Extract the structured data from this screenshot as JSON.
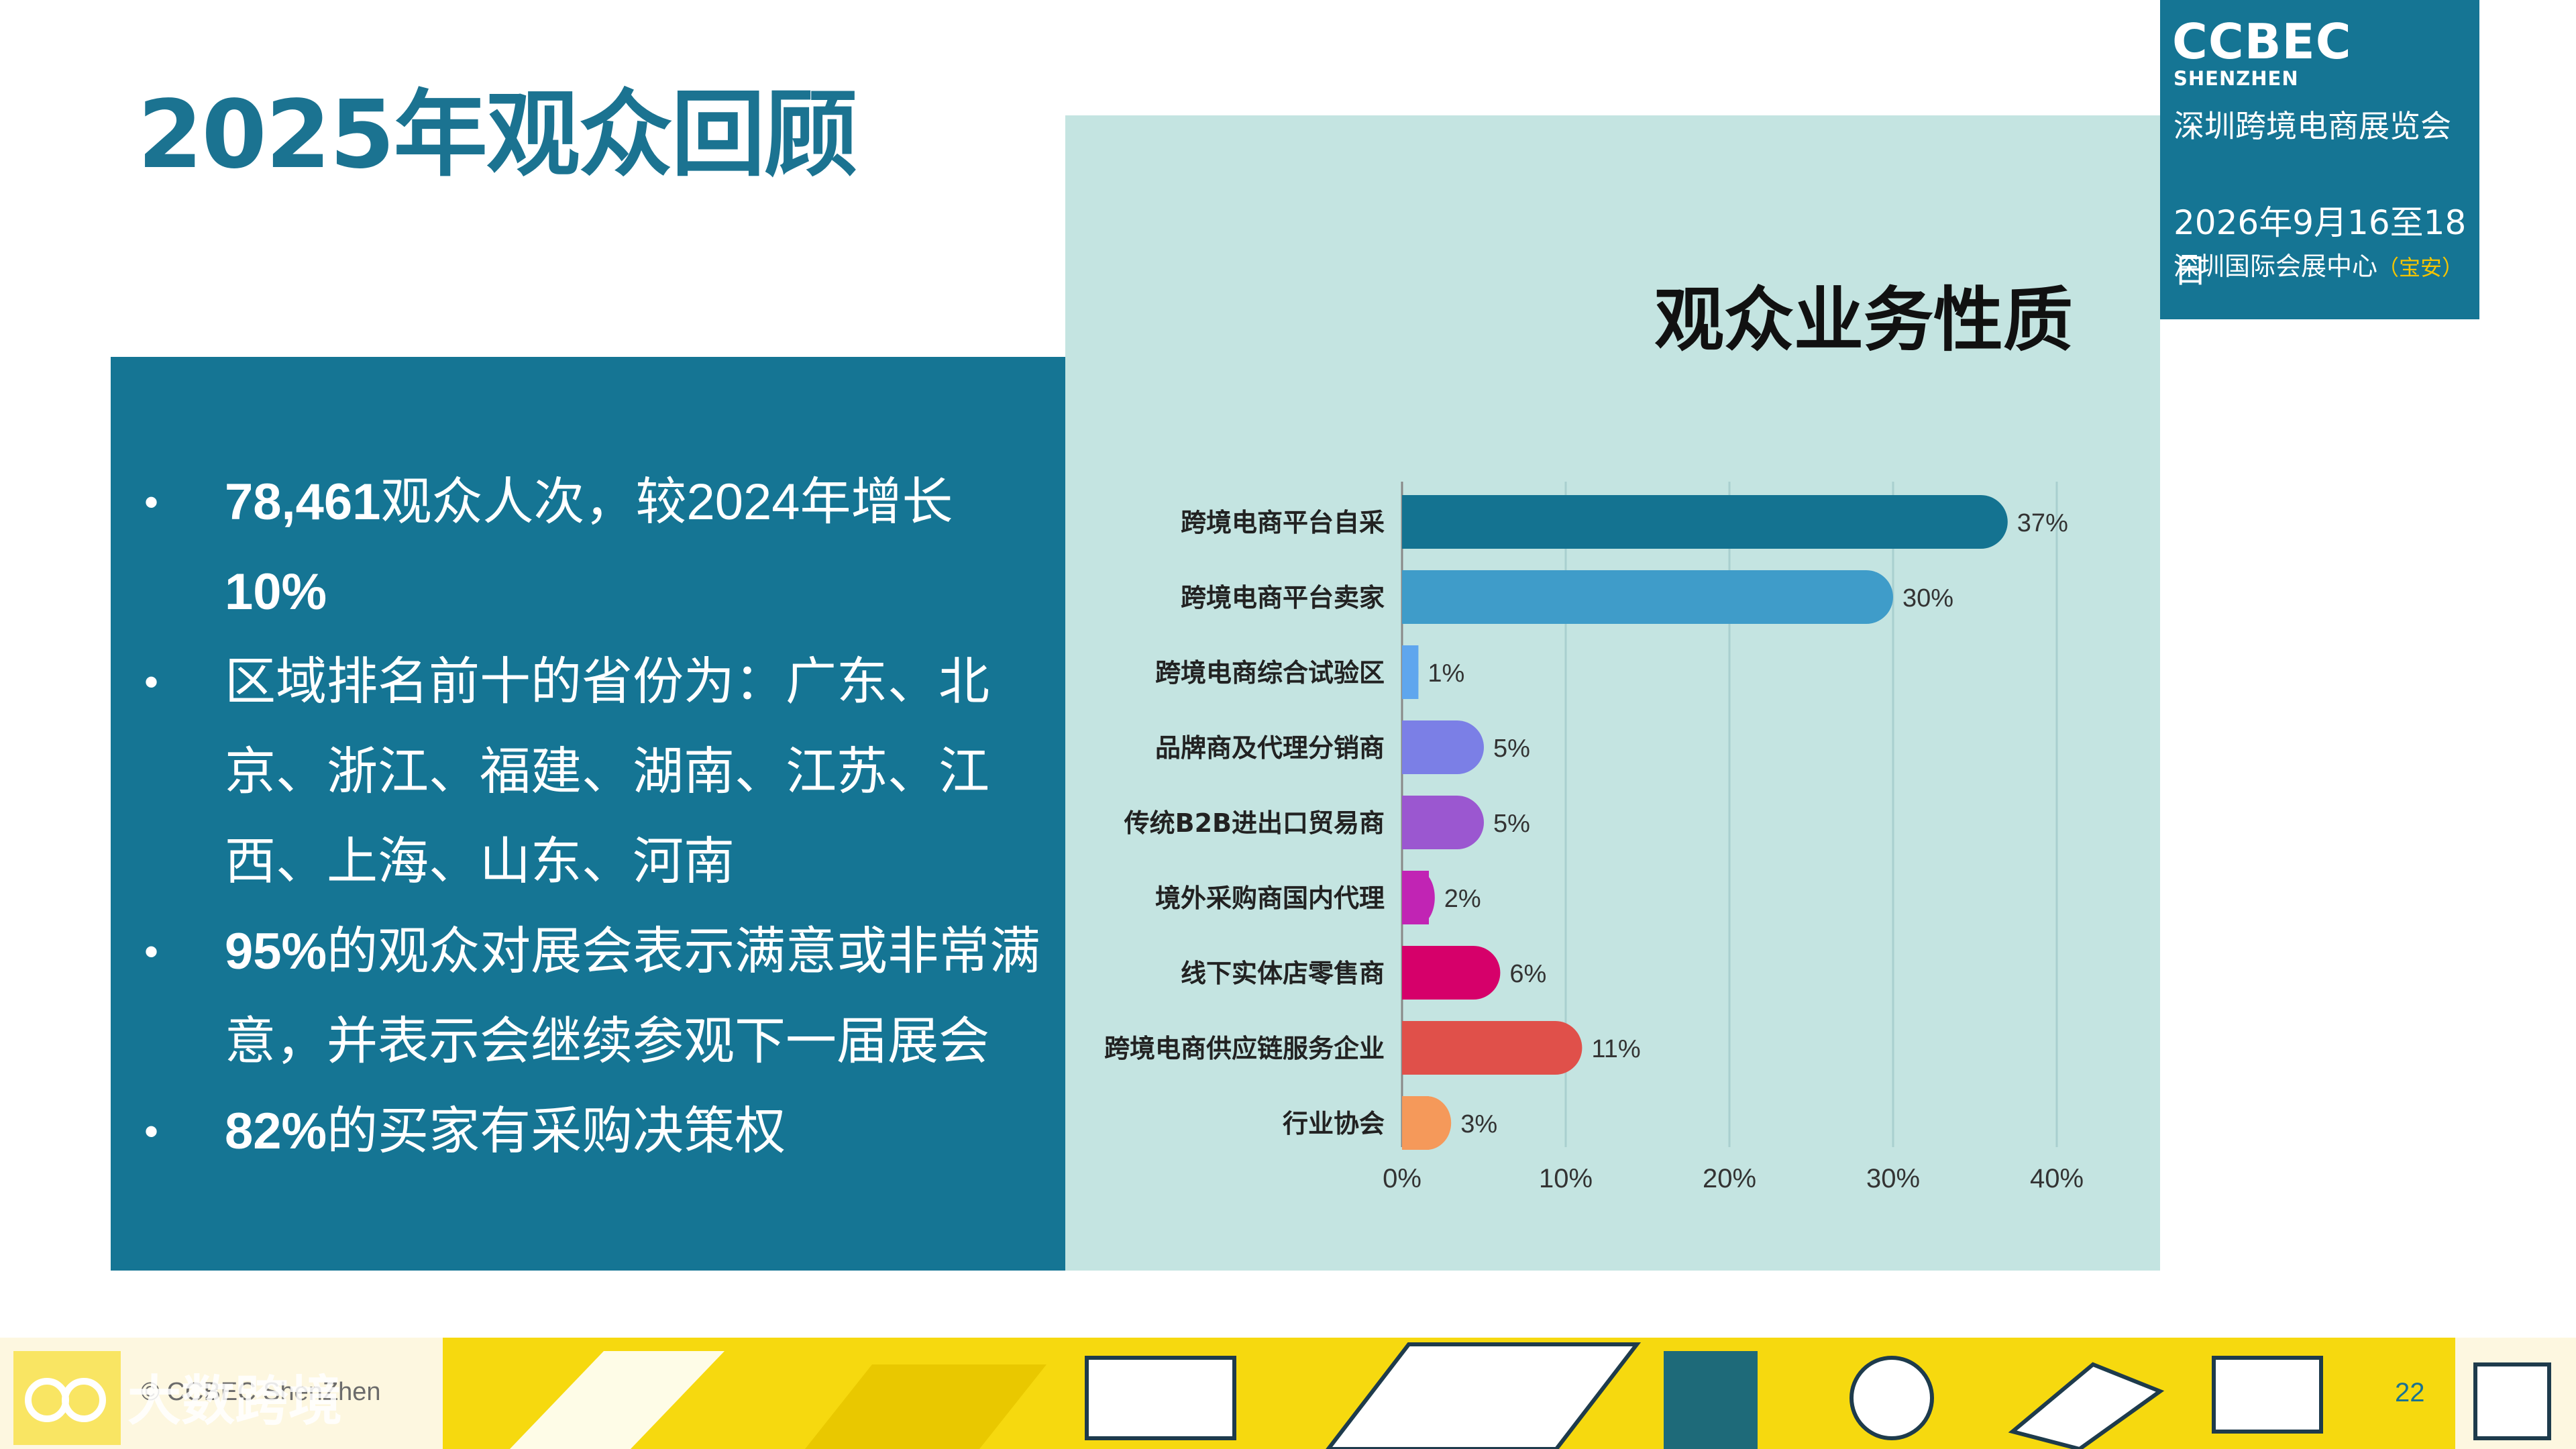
{
  "slide": {
    "title": "2025年观众回顾",
    "page_number": "22",
    "copyright": "© CCBEC ShenZhen",
    "watermark": "大数跨境"
  },
  "info_box": {
    "brand": "CCBEC",
    "sub": "SHENZHEN",
    "name": "深圳跨境电商展览会",
    "date": "2026年9月16至18日",
    "venue": "深圳国际会展中心",
    "venue_tag": "（宝安）"
  },
  "bullets": [
    {
      "bold": "78,461",
      "text": "观众人次，较2024年增长",
      "bold2": "10%"
    },
    {
      "bold": "",
      "text": "区域排名前十的省份为：广东、北京、浙江、福建、湖南、江苏、江西、上海、山东、河南",
      "bold2": ""
    },
    {
      "bold": "95%",
      "text": "的观众对展会表示满意或非常满意，并表示会继续参观下一届展会",
      "bold2": ""
    },
    {
      "bold": "82%",
      "text": "的买家有采购决策权",
      "bold2": ""
    }
  ],
  "chart_data": {
    "type": "bar",
    "orientation": "horizontal",
    "title": "观众业务性质",
    "categories": [
      "跨境电商平台自采",
      "跨境电商平台卖家",
      "跨境电商综合试验区",
      "品牌商及代理分销商",
      "传统B2B进出口贸易商",
      "境外采购商国内代理",
      "线下实体店零售商",
      "跨境电商供应链服务企业",
      "行业协会"
    ],
    "values": [
      37,
      30,
      1,
      5,
      5,
      2,
      6,
      11,
      3
    ],
    "value_labels": [
      "37%",
      "30%",
      "1%",
      "5%",
      "5%",
      "2%",
      "6%",
      "11%",
      "3%"
    ],
    "colors": [
      "#147391",
      "#3f9cc9",
      "#5fa6ee",
      "#7b7fe6",
      "#9b57d0",
      "#c124b4",
      "#d6006a",
      "#e0504a",
      "#f5995a"
    ],
    "xlim": [
      0,
      40
    ],
    "xticks": [
      0,
      10,
      20,
      30,
      40
    ],
    "xtick_labels": [
      "0%",
      "10%",
      "20%",
      "30%",
      "40%"
    ],
    "grid": true
  }
}
